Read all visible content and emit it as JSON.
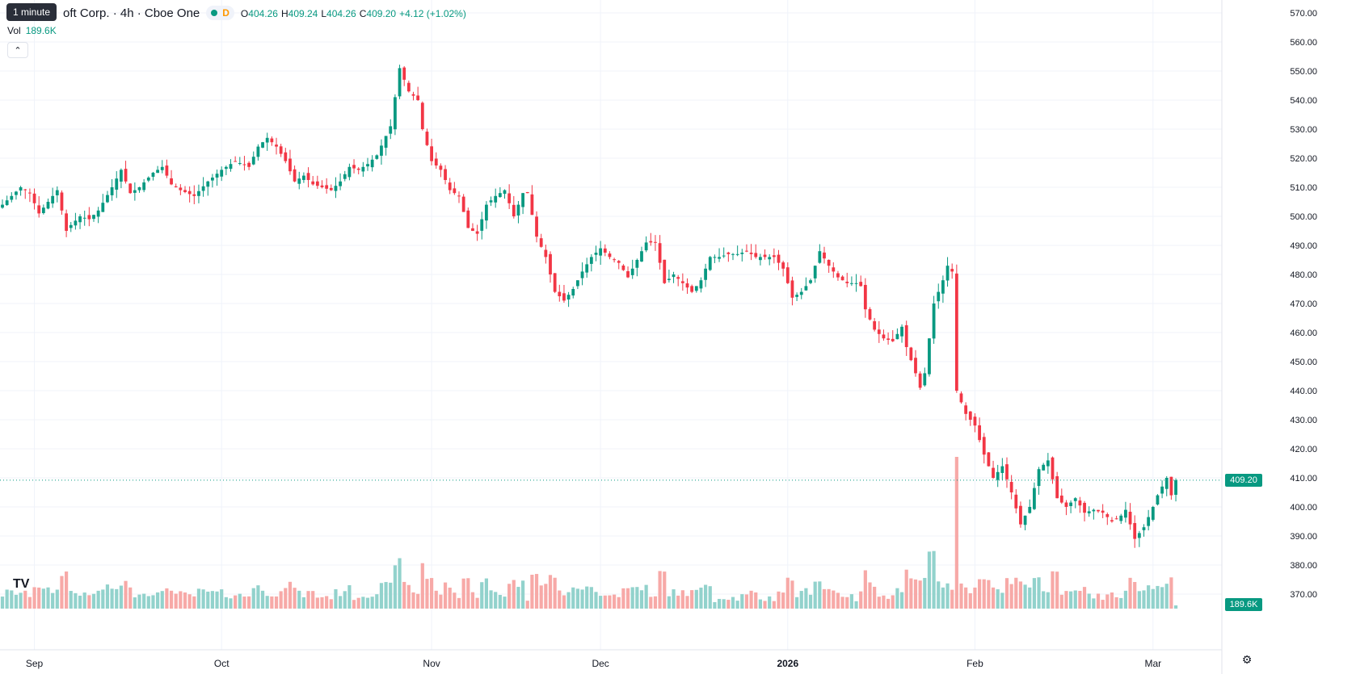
{
  "legend": {
    "tooltip": "1 minute",
    "title": "oft Corp. · 4h · Cboe One",
    "market_badge": "D",
    "ohlc": [
      {
        "k": "O",
        "v": "404.26"
      },
      {
        "k": "H",
        "v": "409.24"
      },
      {
        "k": "L",
        "v": "404.26"
      },
      {
        "k": "C",
        "v": "409.20"
      },
      {
        "k": "",
        "v": "+4.12 (+1.02%)"
      }
    ],
    "vol_label": "Vol",
    "vol_value": "189.6K",
    "collapse_icon": "chevron-up-icon"
  },
  "chart_data": {
    "type": "candlestick",
    "last_price": 409.2,
    "last_price_label": "409.20",
    "last_volume_label": "189.6K",
    "colors": {
      "up": "#089981",
      "down": "#f23645",
      "vol_up": "#92d2cc",
      "vol_down": "#f7a9a7"
    },
    "ylim": [
      365,
      575
    ],
    "y_ticks": [
      "370.00",
      "380.00",
      "390.00",
      "400.00",
      "410.00",
      "420.00",
      "430.00",
      "440.00",
      "450.00",
      "460.00",
      "470.00",
      "480.00",
      "490.00",
      "500.00",
      "510.00",
      "520.00",
      "530.00",
      "540.00",
      "550.00",
      "560.00",
      "570.00"
    ],
    "x_ticks": [
      {
        "label": "Sep",
        "bar": 7
      },
      {
        "label": "Oct",
        "bar": 48
      },
      {
        "label": "Nov",
        "bar": 94
      },
      {
        "label": "Dec",
        "bar": 131
      },
      {
        "label": "2026",
        "bar": 172
      },
      {
        "label": "Feb",
        "bar": 213
      },
      {
        "label": "Mar",
        "bar": 252
      }
    ],
    "closes": [
      [
        0,
        504
      ],
      [
        2,
        507
      ],
      [
        4,
        510
      ],
      [
        6,
        508
      ],
      [
        8,
        501
      ],
      [
        10,
        505
      ],
      [
        12,
        509
      ],
      [
        14,
        495
      ],
      [
        15,
        497
      ],
      [
        17,
        500
      ],
      [
        19,
        499
      ],
      [
        21,
        502
      ],
      [
        24,
        510
      ],
      [
        26,
        516
      ],
      [
        28,
        508
      ],
      [
        30,
        510
      ],
      [
        33,
        515
      ],
      [
        35,
        517
      ],
      [
        37,
        511
      ],
      [
        39,
        509
      ],
      [
        42,
        507
      ],
      [
        45,
        512
      ],
      [
        48,
        516
      ],
      [
        51,
        519
      ],
      [
        54,
        517
      ],
      [
        56,
        524
      ],
      [
        58,
        527
      ],
      [
        60,
        524
      ],
      [
        62,
        519
      ],
      [
        64,
        512
      ],
      [
        66,
        514
      ],
      [
        68,
        511
      ],
      [
        70,
        510
      ],
      [
        72,
        509
      ],
      [
        74,
        512
      ],
      [
        76,
        517
      ],
      [
        78,
        516
      ],
      [
        80,
        518
      ],
      [
        82,
        521
      ],
      [
        85,
        531
      ],
      [
        87,
        551
      ],
      [
        89,
        543
      ],
      [
        91,
        540
      ],
      [
        92,
        530
      ],
      [
        94,
        519
      ],
      [
        96,
        516
      ],
      [
        98,
        509
      ],
      [
        100,
        507
      ],
      [
        102,
        496
      ],
      [
        104,
        494
      ],
      [
        106,
        504
      ],
      [
        108,
        507
      ],
      [
        110,
        509
      ],
      [
        112,
        500
      ],
      [
        114,
        508
      ],
      [
        115,
        508
      ],
      [
        117,
        493
      ],
      [
        119,
        486
      ],
      [
        121,
        474
      ],
      [
        123,
        471
      ],
      [
        125,
        475
      ],
      [
        127,
        481
      ],
      [
        129,
        486
      ],
      [
        131,
        489
      ],
      [
        133,
        486
      ],
      [
        135,
        484
      ],
      [
        137,
        479
      ],
      [
        139,
        485
      ],
      [
        141,
        491
      ],
      [
        143,
        491
      ],
      [
        145,
        477
      ],
      [
        147,
        480
      ],
      [
        149,
        477
      ],
      [
        151,
        474
      ],
      [
        153,
        478
      ],
      [
        155,
        486
      ],
      [
        157,
        486
      ],
      [
        159,
        487
      ],
      [
        161,
        487
      ],
      [
        163,
        488
      ],
      [
        165,
        486
      ],
      [
        167,
        486
      ],
      [
        169,
        486
      ],
      [
        171,
        482
      ],
      [
        173,
        472
      ],
      [
        175,
        474
      ],
      [
        177,
        478
      ],
      [
        179,
        488
      ],
      [
        181,
        483
      ],
      [
        183,
        479
      ],
      [
        185,
        477
      ],
      [
        187,
        477
      ],
      [
        188,
        476
      ],
      [
        189,
        468
      ],
      [
        191,
        461
      ],
      [
        193,
        458
      ],
      [
        195,
        457
      ],
      [
        197,
        462
      ],
      [
        198,
        455
      ],
      [
        200,
        446
      ],
      [
        201,
        441
      ],
      [
        202,
        446
      ],
      [
        204,
        470
      ],
      [
        206,
        478
      ],
      [
        207,
        483
      ],
      [
        208,
        481
      ],
      [
        209,
        440
      ],
      [
        211,
        432
      ],
      [
        213,
        428
      ],
      [
        215,
        418
      ],
      [
        217,
        410
      ],
      [
        219,
        414
      ],
      [
        221,
        405
      ],
      [
        223,
        394
      ],
      [
        225,
        400
      ],
      [
        227,
        413
      ],
      [
        229,
        416
      ],
      [
        231,
        403
      ],
      [
        233,
        400
      ],
      [
        235,
        403
      ],
      [
        237,
        398
      ],
      [
        239,
        399
      ],
      [
        241,
        398
      ],
      [
        243,
        395
      ],
      [
        245,
        397
      ],
      [
        246,
        399
      ],
      [
        248,
        389
      ],
      [
        250,
        393
      ],
      [
        252,
        400
      ],
      [
        253,
        404
      ],
      [
        255,
        410
      ],
      [
        256,
        404
      ],
      [
        257,
        409.2
      ]
    ],
    "volume_scale_note": "Last bar volume 189.6K; largest volume bar ~1.4M"
  }
}
